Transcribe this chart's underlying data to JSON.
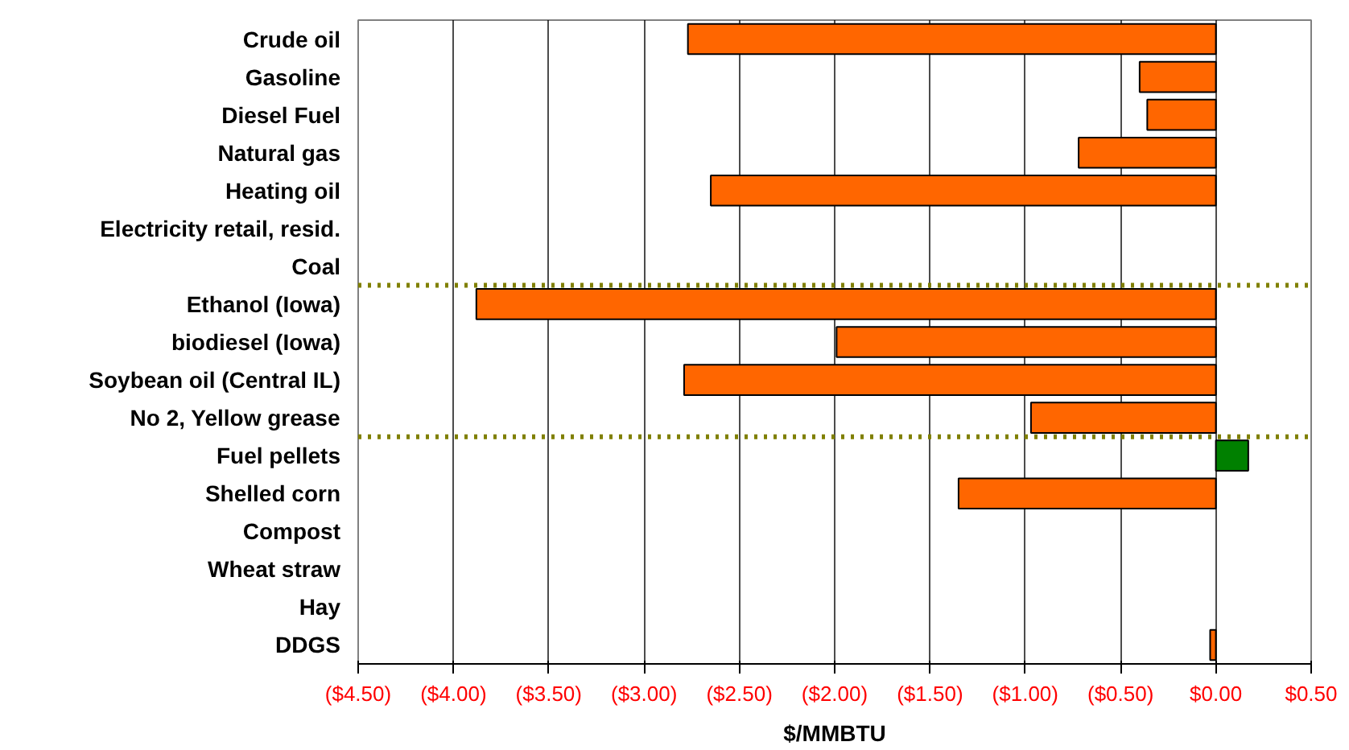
{
  "chart_data": {
    "type": "bar",
    "orientation": "horizontal",
    "xlabel": "$/MMBTU",
    "categories": [
      "Crude oil",
      "Gasoline",
      "Diesel Fuel",
      "Natural gas",
      "Heating oil",
      "Electricity retail, resid.",
      "Coal",
      "Ethanol (Iowa)",
      "biodiesel (Iowa)",
      "Soybean oil (Central IL)",
      "No 2, Yellow grease",
      "Fuel pellets",
      "Shelled corn",
      "Compost",
      "Wheat straw",
      "Hay",
      "DDGS"
    ],
    "values": [
      -2.77,
      -0.4,
      -0.36,
      -0.72,
      -2.65,
      null,
      null,
      -3.88,
      -1.99,
      -2.79,
      -0.97,
      0.17,
      -1.35,
      null,
      null,
      null,
      -0.03
    ],
    "colors": [
      "#ff6600",
      "#ff6600",
      "#ff6600",
      "#ff6600",
      "#ff6600",
      "#ff6600",
      "#ff6600",
      "#ff6600",
      "#ff6600",
      "#ff6600",
      "#ff6600",
      "#008000",
      "#ff6600",
      "#ff6600",
      "#ff6600",
      "#ff6600",
      "#ff6600"
    ],
    "xlim": [
      -4.5,
      0.5
    ],
    "xticks": [
      {
        "value": -4.5,
        "label": "($4.50)"
      },
      {
        "value": -4.0,
        "label": "($4.00)"
      },
      {
        "value": -3.5,
        "label": "($3.50)"
      },
      {
        "value": -3.0,
        "label": "($3.00)"
      },
      {
        "value": -2.5,
        "label": "($2.50)"
      },
      {
        "value": -2.0,
        "label": "($2.00)"
      },
      {
        "value": -1.5,
        "label": "($1.50)"
      },
      {
        "value": -1.0,
        "label": "($1.00)"
      },
      {
        "value": -0.5,
        "label": "($0.50)"
      },
      {
        "value": 0.0,
        "label": "$0.00"
      },
      {
        "value": 0.5,
        "label": "$0.50"
      }
    ],
    "grid": "x"
  }
}
